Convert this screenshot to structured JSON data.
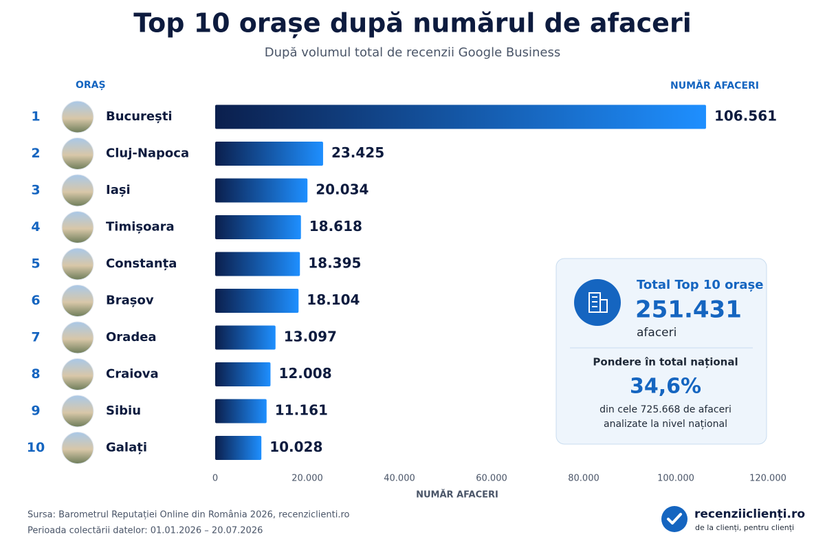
{
  "chart_data": {
    "type": "bar",
    "title": "Top 10 orașe după numărul de afaceri",
    "subtitle": "După volumul total de recenzii Google Business",
    "category_header": "ORAȘ",
    "value_header": "NUMĂR AFACERI",
    "x_label": "NUMĂR AFACERI",
    "ranks": [
      1,
      2,
      3,
      4,
      5,
      6,
      7,
      8,
      9,
      10
    ],
    "categories": [
      "București",
      "Cluj-Napoca",
      "Iași",
      "Timișoara",
      "Constanța",
      "Brașov",
      "Oradea",
      "Craiova",
      "Sibiu",
      "Galați"
    ],
    "values": [
      106561,
      23425,
      20034,
      18618,
      18395,
      18104,
      13097,
      12008,
      11161,
      10028
    ],
    "value_labels": [
      "106.561",
      "23.425",
      "20.034",
      "18.618",
      "18.395",
      "18.104",
      "13.097",
      "12.008",
      "11.161",
      "10.028"
    ],
    "color_start": "#0b1f4d",
    "color_end": "#1e8fff",
    "xlim": [
      0,
      120000
    ],
    "xticks": [
      0,
      {
        "value": 20000,
        "label": "20.000"
      },
      {
        "value": 40000,
        "label": "40.000"
      },
      {
        "value": 60000,
        "label": "60.000"
      },
      {
        "value": 80000,
        "label": "80.000"
      },
      {
        "value": 100000,
        "label": "100.000"
      },
      {
        "value": 120000,
        "label": "120.000"
      }
    ],
    "summary": {
      "total_title": "Total Top 10 orașe",
      "total_value": "251.431",
      "total_unit": "afaceri",
      "share_title": "Pondere în total național",
      "share_value": "34,6%",
      "share_line1": "din cele 725.668 de afaceri",
      "share_line2": "analizate la nivel național"
    },
    "source": "Sursa: Barometrul Reputației Online din România 2026, recenziclienti.ro",
    "period": "Perioada colectării datelor: 01.01.2026 – 20.07.2026",
    "brand": "recenziiclienți.ro",
    "tagline": "de la clienți, pentru clienți"
  }
}
